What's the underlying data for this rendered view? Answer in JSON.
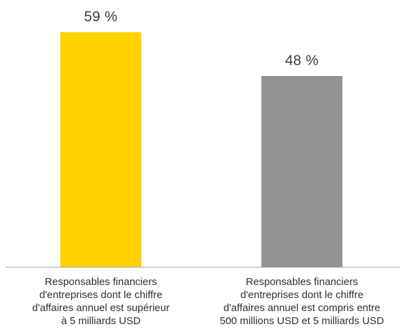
{
  "chart_data": {
    "type": "bar",
    "categories": [
      [
        "Responsables financiers",
        "d'entreprises dont le chiffre",
        "d'affaires annuel est supérieur",
        "à 5 milliards USD"
      ],
      [
        "Responsables financiers",
        "d'entreprises dont le chiffre",
        "d'affaires annuel est compris entre",
        "500 millions USD et 5 milliards USD"
      ]
    ],
    "values": [
      59,
      48
    ],
    "value_labels": [
      "59 %",
      "48 %"
    ],
    "colors": [
      "#ffd200",
      "#929292"
    ],
    "ylim": [
      0,
      59
    ],
    "grid": false,
    "legend": "none"
  }
}
